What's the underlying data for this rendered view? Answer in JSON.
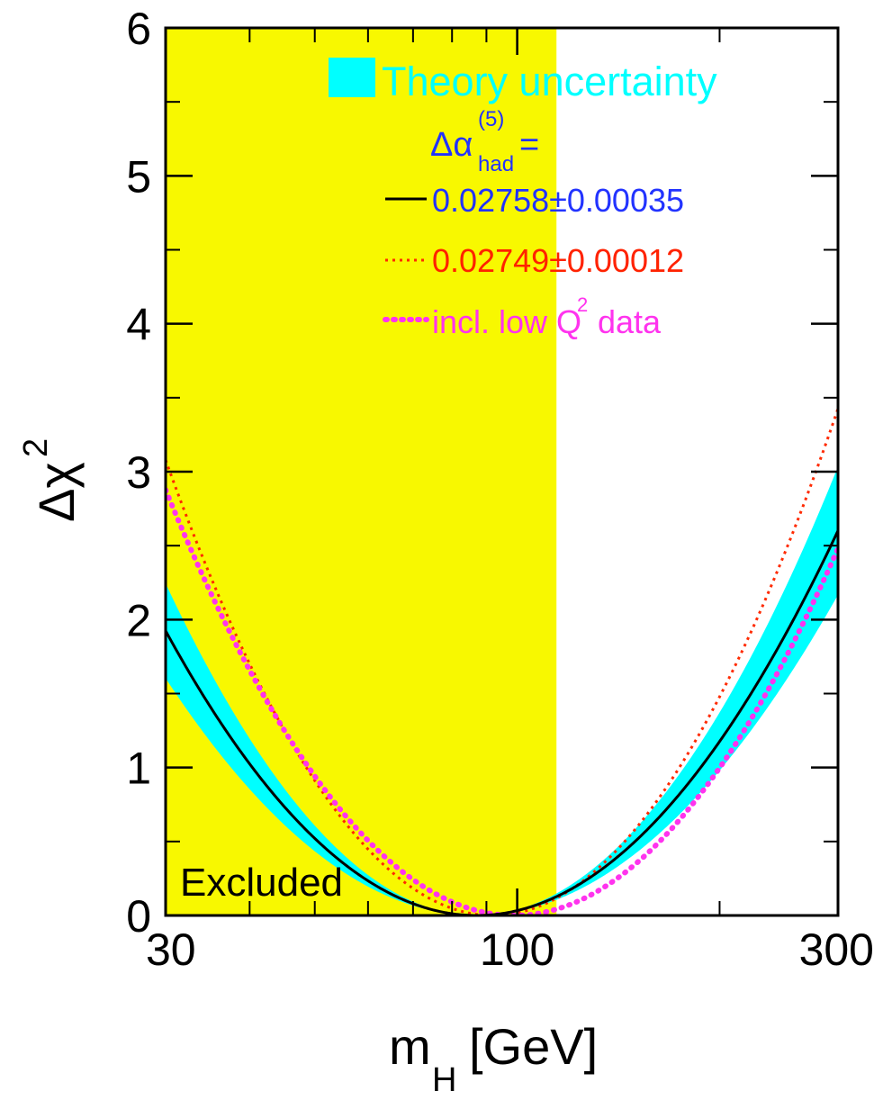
{
  "chart_data": {
    "type": "line",
    "xscale": "log",
    "xlim": [
      30,
      300
    ],
    "ylim": [
      0,
      6
    ],
    "xticks": [
      30,
      100,
      300
    ],
    "xtick_labels": [
      "30",
      "100",
      "300"
    ],
    "yticks": [
      0,
      1,
      2,
      3,
      4,
      5,
      6
    ],
    "ytick_labels": [
      "0",
      "1",
      "2",
      "3",
      "4",
      "5",
      "6"
    ],
    "xlabel_main": "m",
    "xlabel_sub": "H",
    "xlabel_unit": "[GeV]",
    "ylabel_main": "Δχ",
    "ylabel_sup": "2",
    "excluded_region": {
      "x_min": 30,
      "x_max": 114.4,
      "label": "Excluded",
      "color": "#f8f800"
    },
    "legend": {
      "placement": "top-right",
      "band_label": "Theory uncertainty",
      "header_main": "Δα",
      "header_sup": "(5)",
      "header_sub": "had",
      "header_eq": "=",
      "entries": [
        "0.02758±0.00035",
        "0.02749±0.00012",
        "incl. low Q",
        "2",
        " data"
      ]
    },
    "colors": {
      "band": "#00ffff",
      "central": "#000000",
      "dotted_red": "#ff2a00",
      "dotted_magenta": "#ff33ee",
      "legend_blue": "#2233ff",
      "legend_red": "#ff2200",
      "legend_magenta": "#ff33ee",
      "legend_cyan": "#00ffff"
    },
    "series": [
      {
        "id": "theory-band",
        "center": 87,
        "k_lower": 7.5,
        "k_upper": 10.5
      },
      {
        "id": "central",
        "center": 87,
        "k": 9.0
      },
      {
        "id": "dotted-red",
        "center": 92,
        "k": 13.0
      },
      {
        "id": "dotted-magenta",
        "center": 99,
        "k": 10.7
      }
    ]
  }
}
